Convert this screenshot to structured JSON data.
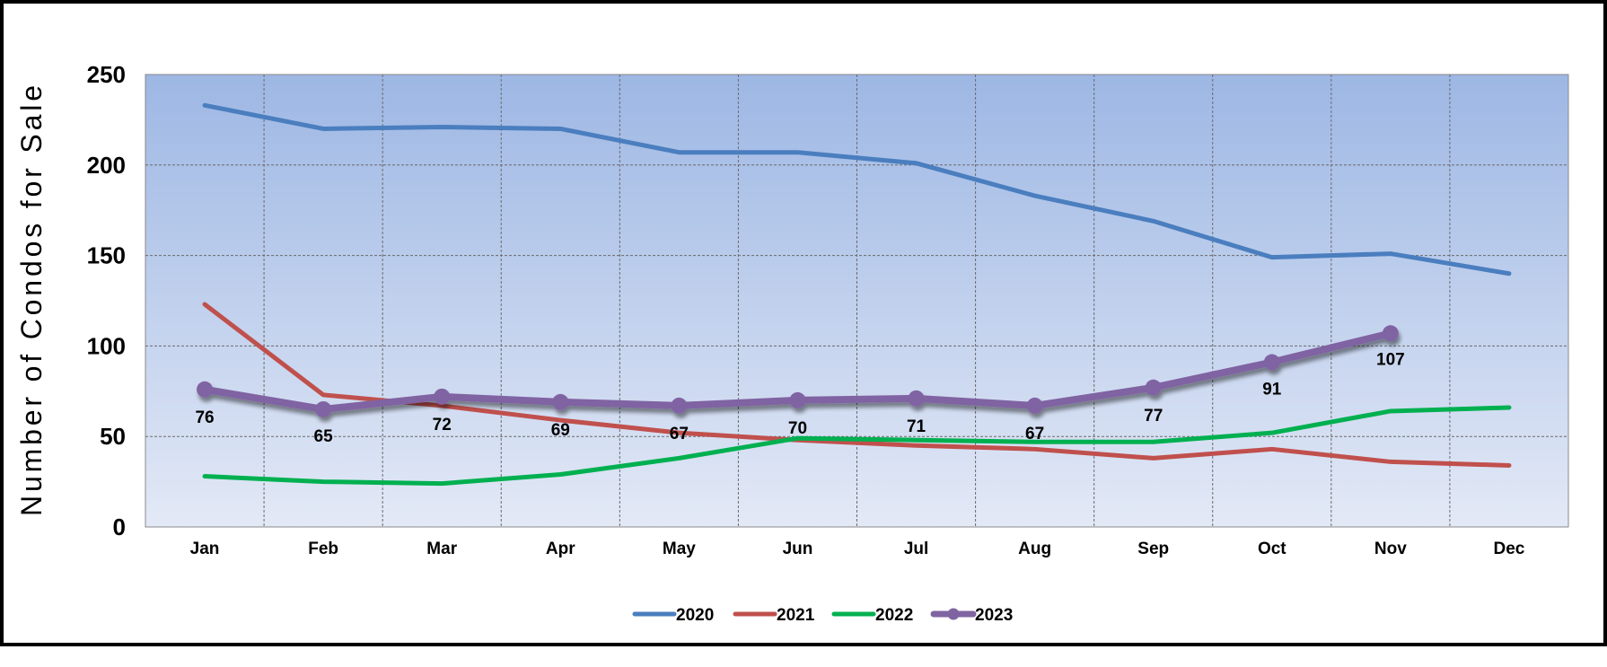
{
  "chart_data": {
    "type": "line",
    "title": "",
    "xlabel": "",
    "ylabel": "Number of Condos for Sale",
    "ylabel_words": [
      "Number",
      "of",
      "Condos",
      "for",
      "Sale"
    ],
    "categories": [
      "Jan",
      "Feb",
      "Mar",
      "Apr",
      "May",
      "Jun",
      "Jul",
      "Aug",
      "Sep",
      "Oct",
      "Nov",
      "Dec"
    ],
    "ylim": [
      0,
      250
    ],
    "yticks": [
      0,
      50,
      100,
      150,
      200,
      250
    ],
    "grid": true,
    "legend_position": "bottom",
    "series": [
      {
        "name": "2020",
        "color": "#4A7EBF",
        "values": [
          233,
          220,
          221,
          220,
          207,
          207,
          201,
          183,
          169,
          149,
          151,
          140
        ]
      },
      {
        "name": "2021",
        "color": "#C0504D",
        "values": [
          123,
          73,
          67,
          59,
          52,
          48,
          45,
          43,
          38,
          43,
          36,
          34
        ]
      },
      {
        "name": "2022",
        "color": "#00B050",
        "values": [
          28,
          25,
          24,
          29,
          38,
          49,
          48,
          47,
          47,
          52,
          64,
          66
        ]
      },
      {
        "name": "2023",
        "color": "#8064A2",
        "values": [
          76,
          65,
          72,
          69,
          67,
          70,
          71,
          67,
          77,
          91,
          107,
          null
        ],
        "markers": true,
        "data_labels": true
      }
    ]
  }
}
